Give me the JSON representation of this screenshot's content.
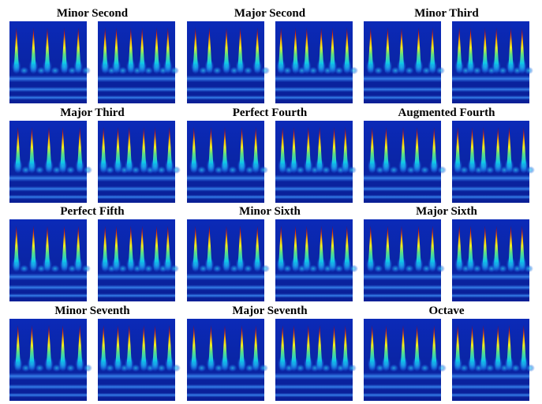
{
  "panels": [
    {
      "title": "Minor Second"
    },
    {
      "title": "Major Second"
    },
    {
      "title": "Minor Third"
    },
    {
      "title": "Major Third"
    },
    {
      "title": "Perfect Fourth"
    },
    {
      "title": "Augmented Fourth"
    },
    {
      "title": "Perfect Fifth"
    },
    {
      "title": "Minor Sixth"
    },
    {
      "title": "Major Sixth"
    },
    {
      "title": "Minor Seventh"
    },
    {
      "title": "Major Seventh"
    },
    {
      "title": "Octave"
    }
  ]
}
